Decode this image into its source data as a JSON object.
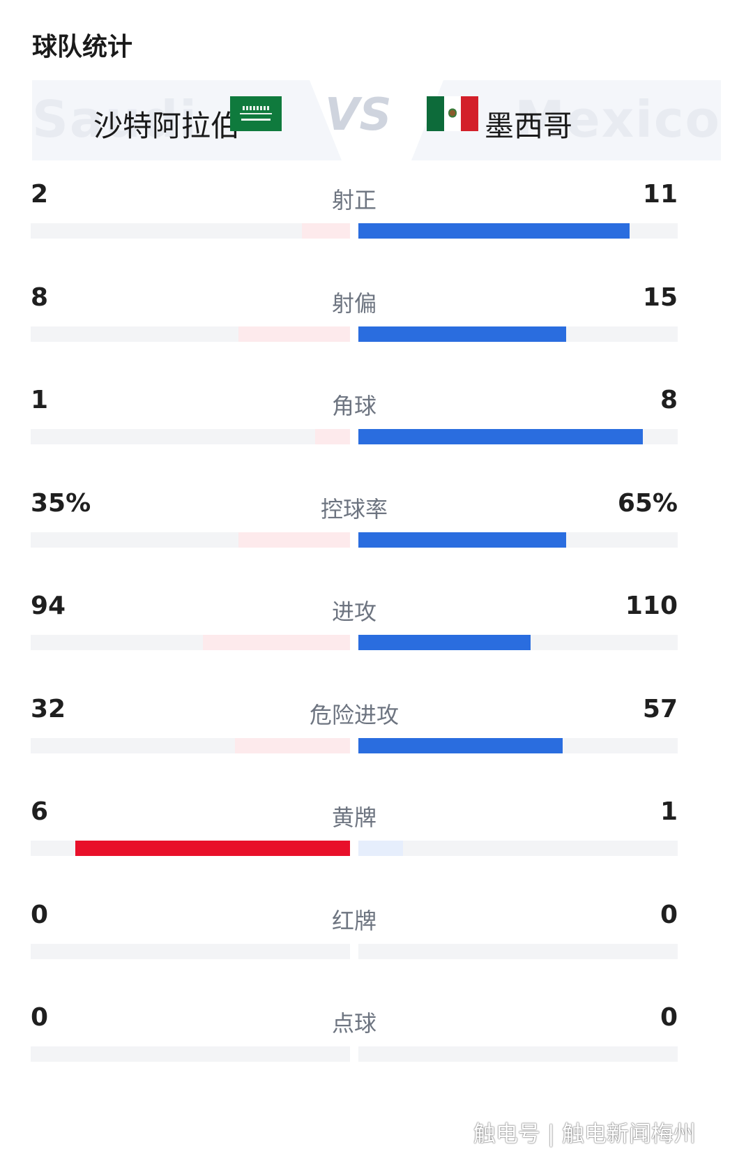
{
  "section_title": "球队统计",
  "header": {
    "home": {
      "name": "沙特阿拉伯",
      "watermark": "Saudi",
      "flag_icon": "saudi-arabia-flag"
    },
    "away": {
      "name": "墨西哥",
      "watermark": "Mexico",
      "flag_icon": "mexico-flag"
    },
    "vs": "VS"
  },
  "colors": {
    "home_strong": "#e8102a",
    "home_light": "#fdeaec",
    "away_strong": "#2a6ddf",
    "away_light": "#e6eefc",
    "track": "#f3f4f6"
  },
  "stats": [
    {
      "label": "射正",
      "home": "2",
      "away": "11",
      "home_share": 0.15,
      "away_share": 0.85,
      "leader": "away"
    },
    {
      "label": "射偏",
      "home": "8",
      "away": "15",
      "home_share": 0.35,
      "away_share": 0.65,
      "leader": "away"
    },
    {
      "label": "角球",
      "home": "1",
      "away": "8",
      "home_share": 0.11,
      "away_share": 0.89,
      "leader": "away"
    },
    {
      "label": "控球率",
      "home": "35%",
      "away": "65%",
      "home_share": 0.35,
      "away_share": 0.65,
      "leader": "away"
    },
    {
      "label": "进攻",
      "home": "94",
      "away": "110",
      "home_share": 0.46,
      "away_share": 0.54,
      "leader": "away"
    },
    {
      "label": "危险进攻",
      "home": "32",
      "away": "57",
      "home_share": 0.36,
      "away_share": 0.64,
      "leader": "away"
    },
    {
      "label": "黄牌",
      "home": "6",
      "away": "1",
      "home_share": 0.86,
      "away_share": 0.14,
      "leader": "home"
    },
    {
      "label": "红牌",
      "home": "0",
      "away": "0",
      "home_share": 0,
      "away_share": 0,
      "leader": "none"
    },
    {
      "label": "点球",
      "home": "0",
      "away": "0",
      "home_share": 0,
      "away_share": 0,
      "leader": "none"
    }
  ],
  "footer_watermark": "触电号 | 触电新闻梅州"
}
